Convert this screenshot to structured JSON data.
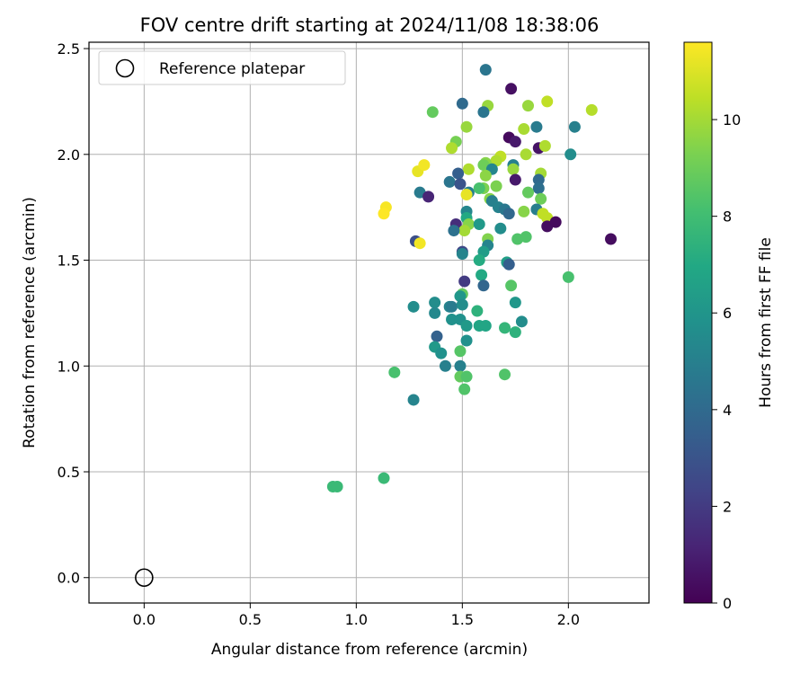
{
  "chart_data": {
    "type": "scatter",
    "title": "FOV centre drift starting at 2024/11/08 18:38:06",
    "xlabel": "Angular distance from reference (arcmin)",
    "ylabel": "Rotation from reference (arcmin)",
    "xlim": [
      -0.26,
      2.38
    ],
    "ylim": [
      -0.12,
      2.53
    ],
    "xticks": [
      0.0,
      0.5,
      1.0,
      1.5,
      2.0
    ],
    "yticks": [
      0.0,
      0.5,
      1.0,
      1.5,
      2.0,
      2.5
    ],
    "xtick_labels": [
      "0.0",
      "0.5",
      "1.0",
      "1.5",
      "2.0"
    ],
    "ytick_labels": [
      "0.0",
      "0.5",
      "1.0",
      "1.5",
      "2.0",
      "2.5"
    ],
    "grid": true,
    "legend": {
      "placement": "top-left",
      "entries": [
        "Reference platepar"
      ]
    },
    "reference_point": {
      "name": "Reference platepar",
      "x": 0.0,
      "y": 0.0
    },
    "colorbar": {
      "label": "Hours from first FF file",
      "colormap": "viridis",
      "range": [
        0,
        11.6
      ],
      "ticks": [
        0,
        2,
        4,
        6,
        8,
        10
      ],
      "tick_labels": [
        "0",
        "2",
        "4",
        "6",
        "8",
        "10"
      ]
    },
    "points": [
      [
        1.61,
        2.4,
        4.5
      ],
      [
        1.73,
        2.31,
        0.5
      ],
      [
        1.5,
        2.24,
        4.0
      ],
      [
        1.62,
        2.23,
        9.8
      ],
      [
        1.81,
        2.23,
        9.8
      ],
      [
        1.9,
        2.25,
        10.5
      ],
      [
        1.36,
        2.2,
        8.8
      ],
      [
        1.6,
        2.2,
        4.5
      ],
      [
        2.11,
        2.21,
        10.3
      ],
      [
        1.52,
        2.13,
        9.8
      ],
      [
        1.85,
        2.13,
        4.8
      ],
      [
        2.03,
        2.13,
        5.0
      ],
      [
        1.79,
        2.12,
        10.1
      ],
      [
        1.72,
        2.08,
        0.3
      ],
      [
        1.75,
        2.06,
        0.8
      ],
      [
        1.86,
        2.03,
        0.6
      ],
      [
        1.47,
        2.06,
        9.2
      ],
      [
        1.45,
        2.03,
        10.2
      ],
      [
        1.89,
        2.04,
        10.2
      ],
      [
        2.01,
        2.0,
        5.6
      ],
      [
        1.8,
        2.0,
        10.1
      ],
      [
        1.68,
        1.99,
        10.5
      ],
      [
        1.66,
        1.97,
        10.2
      ],
      [
        1.61,
        1.96,
        9.5
      ],
      [
        1.6,
        1.95,
        9.0
      ],
      [
        1.74,
        1.95,
        5.0
      ],
      [
        1.74,
        1.93,
        9.8
      ],
      [
        1.53,
        1.93,
        10.2
      ],
      [
        1.29,
        1.92,
        11.2
      ],
      [
        1.32,
        1.95,
        11.4
      ],
      [
        1.48,
        1.91,
        3.5
      ],
      [
        1.64,
        1.93,
        5.3
      ],
      [
        1.87,
        1.91,
        10.0
      ],
      [
        1.86,
        1.88,
        4.0
      ],
      [
        1.61,
        1.9,
        9.6
      ],
      [
        1.75,
        1.88,
        0.8
      ],
      [
        1.44,
        1.87,
        4.5
      ],
      [
        1.49,
        1.86,
        3.0
      ],
      [
        1.66,
        1.85,
        9.3
      ],
      [
        1.6,
        1.84,
        9.3
      ],
      [
        1.86,
        1.84,
        4.2
      ],
      [
        1.3,
        1.82,
        4.8
      ],
      [
        1.34,
        1.8,
        1.2
      ],
      [
        1.53,
        1.82,
        5.0
      ],
      [
        1.52,
        1.81,
        11.2
      ],
      [
        1.58,
        1.84,
        8.2
      ],
      [
        1.81,
        1.82,
        8.8
      ],
      [
        1.63,
        1.79,
        9.5
      ],
      [
        1.87,
        1.79,
        9.0
      ],
      [
        1.64,
        1.78,
        5.0
      ],
      [
        1.14,
        1.75,
        11.5
      ],
      [
        1.13,
        1.72,
        11.6
      ],
      [
        1.67,
        1.75,
        5.1
      ],
      [
        1.7,
        1.74,
        4.6
      ],
      [
        1.79,
        1.73,
        9.5
      ],
      [
        1.85,
        1.74,
        4.9
      ],
      [
        1.88,
        1.72,
        10.5
      ],
      [
        1.9,
        1.7,
        10.5
      ],
      [
        1.72,
        1.72,
        3.9
      ],
      [
        1.52,
        1.73,
        5.3
      ],
      [
        1.52,
        1.7,
        7.0
      ],
      [
        1.53,
        1.67,
        9.5
      ],
      [
        1.47,
        1.67,
        1.5
      ],
      [
        1.51,
        1.64,
        10.0
      ],
      [
        1.58,
        1.67,
        6.2
      ],
      [
        1.68,
        1.65,
        5.6
      ],
      [
        1.46,
        1.64,
        4.3
      ],
      [
        1.9,
        1.66,
        0.4
      ],
      [
        1.94,
        1.68,
        0.3
      ],
      [
        2.2,
        1.6,
        0.4
      ],
      [
        1.76,
        1.6,
        8.4
      ],
      [
        1.8,
        1.61,
        8.4
      ],
      [
        1.62,
        1.6,
        9.4
      ],
      [
        1.62,
        1.57,
        5.2
      ],
      [
        1.28,
        1.59,
        2.8
      ],
      [
        1.3,
        1.58,
        11.4
      ],
      [
        1.6,
        1.54,
        6.4
      ],
      [
        1.5,
        1.54,
        2.5
      ],
      [
        1.5,
        1.53,
        5.2
      ],
      [
        1.58,
        1.5,
        7.1
      ],
      [
        1.71,
        1.49,
        6.5
      ],
      [
        1.72,
        1.48,
        3.5
      ],
      [
        1.59,
        1.43,
        7.0
      ],
      [
        1.51,
        1.4,
        2.0
      ],
      [
        1.6,
        1.38,
        3.8
      ],
      [
        1.73,
        1.38,
        8.5
      ],
      [
        2.0,
        1.42,
        8.2
      ],
      [
        1.5,
        1.34,
        8.8
      ],
      [
        1.49,
        1.33,
        6.1
      ],
      [
        1.27,
        1.28,
        5.6
      ],
      [
        1.37,
        1.3,
        5.6
      ],
      [
        1.44,
        1.28,
        5.2
      ],
      [
        1.45,
        1.28,
        4.8
      ],
      [
        1.5,
        1.29,
        5.6
      ],
      [
        1.57,
        1.26,
        7.4
      ],
      [
        1.75,
        1.3,
        6.1
      ],
      [
        1.37,
        1.25,
        5.4
      ],
      [
        1.45,
        1.22,
        5.8
      ],
      [
        1.49,
        1.22,
        5.8
      ],
      [
        1.52,
        1.19,
        6.2
      ],
      [
        1.58,
        1.19,
        6.8
      ],
      [
        1.61,
        1.19,
        6.8
      ],
      [
        1.7,
        1.18,
        7.6
      ],
      [
        1.75,
        1.16,
        7.4
      ],
      [
        1.78,
        1.21,
        5.6
      ],
      [
        1.38,
        1.14,
        3.6
      ],
      [
        1.52,
        1.12,
        5.8
      ],
      [
        1.37,
        1.09,
        6.2
      ],
      [
        1.4,
        1.06,
        5.8
      ],
      [
        1.49,
        1.07,
        8.5
      ],
      [
        1.42,
        1.0,
        5.0
      ],
      [
        1.49,
        1.0,
        5.0
      ],
      [
        1.18,
        0.97,
        8.2
      ],
      [
        1.49,
        0.95,
        8.8
      ],
      [
        1.52,
        0.95,
        8.4
      ],
      [
        1.7,
        0.96,
        8.4
      ],
      [
        1.51,
        0.89,
        8.4
      ],
      [
        1.27,
        0.84,
        5.2
      ],
      [
        0.89,
        0.43,
        7.8
      ],
      [
        0.91,
        0.43,
        7.8
      ],
      [
        1.13,
        0.47,
        7.8
      ]
    ]
  }
}
